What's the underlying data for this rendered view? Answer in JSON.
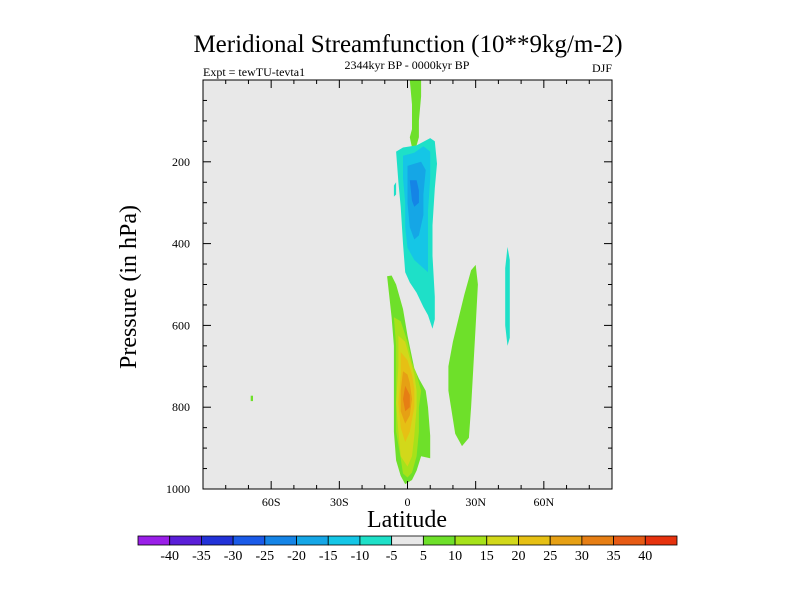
{
  "chart_data": {
    "type": "contour",
    "title": "Meridional Streamfunction (10**9kg/m-2)",
    "subtitle_left": "Expt = tewTU-tevta1",
    "subtitle_center": "2344kyr BP - 0000kyr BP",
    "subtitle_right": "DJF",
    "xlabel": "Latitude",
    "ylabel": "Pressure (in hPa)",
    "xlim": [
      -90,
      90
    ],
    "ylim": [
      1000,
      0
    ],
    "x_ticks": [
      {
        "value": -60,
        "label": "60S"
      },
      {
        "value": -30,
        "label": "30S"
      },
      {
        "value": 0,
        "label": "0"
      },
      {
        "value": 30,
        "label": "30N"
      },
      {
        "value": 60,
        "label": "60N"
      }
    ],
    "y_ticks": [
      {
        "value": 200,
        "label": "200"
      },
      {
        "value": 400,
        "label": "400"
      },
      {
        "value": 600,
        "label": "600"
      },
      {
        "value": 800,
        "label": "800"
      },
      {
        "value": 1000,
        "label": "1000"
      }
    ],
    "background_color": "#e8e8e8",
    "colorbar": {
      "labels": [
        "-40",
        "-35",
        "-30",
        "-25",
        "-20",
        "-15",
        "-10",
        "-5",
        "5",
        "10",
        "15",
        "20",
        "25",
        "30",
        "35",
        "40"
      ],
      "colors": [
        "#9a1fe8",
        "#5a1ed8",
        "#2232d8",
        "#1a5ae8",
        "#1584e6",
        "#15a6e6",
        "#15c6e6",
        "#1ee0c8",
        "#e8e8e8",
        "#6ee02a",
        "#a6e21a",
        "#d2d81a",
        "#e6c014",
        "#e6a014",
        "#e67e14",
        "#e65a14",
        "#e6320e"
      ]
    },
    "regions": [
      {
        "name": "positive-cell-outer",
        "color": "#6ee02a",
        "points": [
          [
            -9,
            480
          ],
          [
            -7,
            580
          ],
          [
            -6,
            650
          ],
          [
            -6,
            720
          ],
          [
            -6,
            800
          ],
          [
            -6,
            860
          ],
          [
            -5,
            930
          ],
          [
            -3,
            968
          ],
          [
            -1,
            988
          ],
          [
            2,
            978
          ],
          [
            4,
            955
          ],
          [
            6,
            920
          ],
          [
            10,
            925
          ],
          [
            10,
            870
          ],
          [
            9,
            800
          ],
          [
            8,
            760
          ],
          [
            5,
            730
          ],
          [
            3,
            705
          ],
          [
            0,
            625
          ],
          [
            -2,
            560
          ],
          [
            -5,
            500
          ],
          [
            -7,
            478
          ]
        ]
      },
      {
        "name": "positive-cell-15",
        "color": "#a6e21a",
        "points": [
          [
            -6,
            580
          ],
          [
            -5,
            650
          ],
          [
            -5,
            720
          ],
          [
            -5,
            800
          ],
          [
            -5,
            860
          ],
          [
            -3,
            925
          ],
          [
            -2,
            962
          ],
          [
            0,
            972
          ],
          [
            2,
            960
          ],
          [
            4,
            920
          ],
          [
            5,
            860
          ],
          [
            5,
            800
          ],
          [
            6,
            760
          ],
          [
            4,
            720
          ],
          [
            2,
            690
          ],
          [
            0,
            640
          ],
          [
            -3,
            590
          ]
        ]
      },
      {
        "name": "positive-cell-20",
        "color": "#d2d81a",
        "points": [
          [
            -4,
            625
          ],
          [
            -4,
            700
          ],
          [
            -5,
            790
          ],
          [
            -4,
            860
          ],
          [
            -3,
            920
          ],
          [
            0,
            945
          ],
          [
            2,
            920
          ],
          [
            3,
            870
          ],
          [
            4,
            800
          ],
          [
            4,
            760
          ],
          [
            3,
            720
          ],
          [
            1,
            680
          ],
          [
            -1,
            640
          ]
        ]
      },
      {
        "name": "positive-cell-25",
        "color": "#e6c014",
        "points": [
          [
            -3,
            665
          ],
          [
            -3,
            720
          ],
          [
            -4,
            790
          ],
          [
            -3,
            850
          ],
          [
            -1,
            885
          ],
          [
            1,
            860
          ],
          [
            3,
            800
          ],
          [
            3,
            755
          ],
          [
            2,
            720
          ],
          [
            0,
            685
          ]
        ]
      },
      {
        "name": "positive-cell-30",
        "color": "#e6a014",
        "points": [
          [
            -2,
            712
          ],
          [
            -3,
            760
          ],
          [
            -3,
            810
          ],
          [
            -1,
            840
          ],
          [
            1,
            820
          ],
          [
            2,
            780
          ],
          [
            1,
            740
          ],
          [
            0,
            720
          ]
        ]
      },
      {
        "name": "positive-cell-35",
        "color": "#e67e14",
        "points": [
          [
            -1,
            748
          ],
          [
            -2,
            780
          ],
          [
            -1,
            810
          ],
          [
            1,
            800
          ],
          [
            1,
            770
          ]
        ]
      },
      {
        "name": "positive-tower-top",
        "color": "#6ee02a",
        "points": [
          [
            1,
            0
          ],
          [
            2,
            60
          ],
          [
            2,
            120
          ],
          [
            1,
            140
          ],
          [
            2,
            165
          ],
          [
            4,
            160
          ],
          [
            5,
            140
          ],
          [
            5,
            100
          ],
          [
            6,
            40
          ],
          [
            6,
            0
          ]
        ]
      },
      {
        "name": "positive-nh-cell",
        "color": "#6ee02a",
        "points": [
          [
            19,
            795
          ],
          [
            18,
            760
          ],
          [
            18,
            700
          ],
          [
            20,
            640
          ],
          [
            23,
            570
          ],
          [
            25,
            525
          ],
          [
            28,
            465
          ],
          [
            30,
            452
          ],
          [
            31,
            500
          ],
          [
            30,
            600
          ],
          [
            29,
            700
          ],
          [
            28,
            800
          ],
          [
            27,
            875
          ],
          [
            24,
            895
          ],
          [
            21,
            865
          ]
        ]
      },
      {
        "name": "positive-sh-speck",
        "color": "#6ee02a",
        "points": [
          [
            -69,
            772
          ],
          [
            -68,
            772
          ],
          [
            -68,
            785
          ],
          [
            -69,
            785
          ]
        ]
      },
      {
        "name": "negative-cell-outer",
        "color": "#1ee0c8",
        "points": [
          [
            -5,
            175
          ],
          [
            -2,
            165
          ],
          [
            4,
            160
          ],
          [
            10,
            142
          ],
          [
            12,
            150
          ],
          [
            13,
            205
          ],
          [
            12,
            265
          ],
          [
            11,
            355
          ],
          [
            11,
            430
          ],
          [
            12,
            530
          ],
          [
            12,
            585
          ],
          [
            11,
            608
          ],
          [
            9,
            575
          ],
          [
            7,
            555
          ],
          [
            4,
            520
          ],
          [
            1,
            495
          ],
          [
            -1,
            470
          ],
          [
            -2,
            400
          ],
          [
            -3,
            310
          ],
          [
            -4,
            250
          ]
        ]
      },
      {
        "name": "negative-cell-10",
        "color": "#15c6e6",
        "points": [
          [
            -2,
            185
          ],
          [
            3,
            178
          ],
          [
            7,
            162
          ],
          [
            10,
            175
          ],
          [
            10,
            240
          ],
          [
            9,
            320
          ],
          [
            9,
            390
          ],
          [
            9,
            470
          ],
          [
            7,
            460
          ],
          [
            3,
            440
          ],
          [
            0,
            410
          ],
          [
            -1,
            360
          ],
          [
            -1,
            300
          ],
          [
            -2,
            240
          ]
        ]
      },
      {
        "name": "negative-cell-15",
        "color": "#15a6e6",
        "points": [
          [
            0,
            210
          ],
          [
            3,
            205
          ],
          [
            6,
            200
          ],
          [
            8,
            220
          ],
          [
            7,
            280
          ],
          [
            7,
            330
          ],
          [
            5,
            380
          ],
          [
            3,
            390
          ],
          [
            1,
            360
          ],
          [
            0,
            300
          ]
        ]
      },
      {
        "name": "negative-cell-20",
        "color": "#1584e6",
        "points": [
          [
            1,
            245
          ],
          [
            4,
            245
          ],
          [
            5,
            270
          ],
          [
            5,
            300
          ],
          [
            3,
            310
          ],
          [
            2,
            295
          ]
        ]
      },
      {
        "name": "negative-nh-streak",
        "color": "#1ee0c8",
        "points": [
          [
            44,
            408
          ],
          [
            45,
            440
          ],
          [
            45,
            500
          ],
          [
            45,
            560
          ],
          [
            45,
            630
          ],
          [
            44,
            650
          ],
          [
            43,
            600
          ],
          [
            43,
            520
          ],
          [
            43,
            460
          ]
        ]
      },
      {
        "name": "negative-sliver",
        "color": "#1ee0c8",
        "points": [
          [
            -6,
            258
          ],
          [
            -5,
            250
          ],
          [
            -5,
            280
          ],
          [
            -6,
            285
          ]
        ]
      }
    ]
  }
}
